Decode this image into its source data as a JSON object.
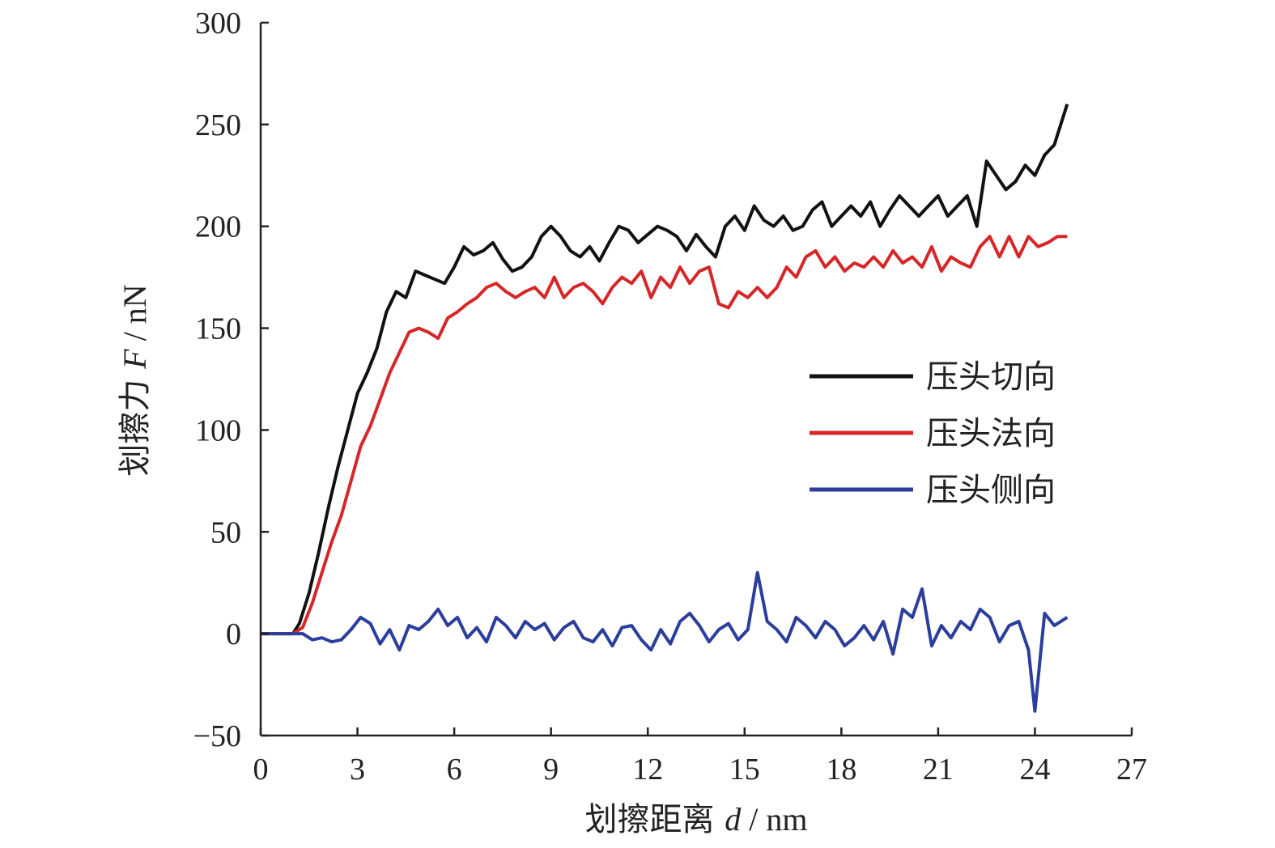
{
  "chart_data": {
    "type": "line",
    "title": "",
    "xlabel": {
      "prefix": "划擦距离 ",
      "var": "d",
      "suffix": " / nm"
    },
    "ylabel": {
      "prefix": "划擦力 ",
      "var": "F",
      "suffix": " / nN"
    },
    "xlim": [
      0,
      27
    ],
    "ylim": [
      -50,
      300
    ],
    "xticks": [
      0,
      3,
      6,
      9,
      12,
      15,
      18,
      21,
      24,
      27
    ],
    "yticks": [
      -50,
      0,
      50,
      100,
      150,
      200,
      250,
      300
    ],
    "grid": false,
    "legend_position": "right-middle",
    "series": [
      {
        "name": "压头切向",
        "color": "#111111",
        "points": [
          [
            0,
            0
          ],
          [
            0.5,
            0
          ],
          [
            1.0,
            0
          ],
          [
            1.2,
            5
          ],
          [
            1.5,
            20
          ],
          [
            1.8,
            40
          ],
          [
            2.1,
            62
          ],
          [
            2.4,
            82
          ],
          [
            2.7,
            100
          ],
          [
            3.0,
            118
          ],
          [
            3.3,
            128
          ],
          [
            3.6,
            140
          ],
          [
            3.9,
            158
          ],
          [
            4.2,
            168
          ],
          [
            4.5,
            165
          ],
          [
            4.8,
            178
          ],
          [
            5.1,
            176
          ],
          [
            5.4,
            174
          ],
          [
            5.7,
            172
          ],
          [
            6.0,
            180
          ],
          [
            6.3,
            190
          ],
          [
            6.6,
            186
          ],
          [
            6.9,
            188
          ],
          [
            7.2,
            192
          ],
          [
            7.5,
            184
          ],
          [
            7.8,
            178
          ],
          [
            8.1,
            180
          ],
          [
            8.4,
            185
          ],
          [
            8.7,
            195
          ],
          [
            9.0,
            200
          ],
          [
            9.3,
            195
          ],
          [
            9.6,
            188
          ],
          [
            9.9,
            185
          ],
          [
            10.2,
            190
          ],
          [
            10.5,
            183
          ],
          [
            10.8,
            192
          ],
          [
            11.1,
            200
          ],
          [
            11.4,
            198
          ],
          [
            11.7,
            192
          ],
          [
            12.0,
            196
          ],
          [
            12.3,
            200
          ],
          [
            12.6,
            198
          ],
          [
            12.9,
            195
          ],
          [
            13.2,
            188
          ],
          [
            13.5,
            196
          ],
          [
            13.8,
            190
          ],
          [
            14.1,
            185
          ],
          [
            14.4,
            200
          ],
          [
            14.7,
            205
          ],
          [
            15.0,
            198
          ],
          [
            15.3,
            210
          ],
          [
            15.6,
            203
          ],
          [
            15.9,
            200
          ],
          [
            16.2,
            205
          ],
          [
            16.5,
            198
          ],
          [
            16.8,
            200
          ],
          [
            17.1,
            208
          ],
          [
            17.4,
            212
          ],
          [
            17.7,
            200
          ],
          [
            18.0,
            205
          ],
          [
            18.3,
            210
          ],
          [
            18.6,
            205
          ],
          [
            18.9,
            212
          ],
          [
            19.2,
            200
          ],
          [
            19.5,
            208
          ],
          [
            19.8,
            215
          ],
          [
            20.1,
            210
          ],
          [
            20.4,
            205
          ],
          [
            20.7,
            210
          ],
          [
            21.0,
            215
          ],
          [
            21.3,
            205
          ],
          [
            21.6,
            210
          ],
          [
            21.9,
            215
          ],
          [
            22.2,
            200
          ],
          [
            22.5,
            232
          ],
          [
            22.8,
            225
          ],
          [
            23.1,
            218
          ],
          [
            23.4,
            222
          ],
          [
            23.7,
            230
          ],
          [
            24.0,
            225
          ],
          [
            24.3,
            235
          ],
          [
            24.6,
            240
          ],
          [
            25.0,
            260
          ]
        ]
      },
      {
        "name": "压头法向",
        "color": "#d62728",
        "points": [
          [
            0,
            0
          ],
          [
            0.5,
            0
          ],
          [
            1.0,
            0
          ],
          [
            1.3,
            3
          ],
          [
            1.6,
            15
          ],
          [
            1.9,
            30
          ],
          [
            2.2,
            45
          ],
          [
            2.5,
            58
          ],
          [
            2.8,
            75
          ],
          [
            3.1,
            92
          ],
          [
            3.4,
            102
          ],
          [
            3.7,
            115
          ],
          [
            4.0,
            128
          ],
          [
            4.3,
            138
          ],
          [
            4.6,
            148
          ],
          [
            4.9,
            150
          ],
          [
            5.2,
            148
          ],
          [
            5.5,
            145
          ],
          [
            5.8,
            155
          ],
          [
            6.1,
            158
          ],
          [
            6.4,
            162
          ],
          [
            6.7,
            165
          ],
          [
            7.0,
            170
          ],
          [
            7.3,
            172
          ],
          [
            7.6,
            168
          ],
          [
            7.9,
            165
          ],
          [
            8.2,
            168
          ],
          [
            8.5,
            170
          ],
          [
            8.8,
            165
          ],
          [
            9.1,
            175
          ],
          [
            9.4,
            165
          ],
          [
            9.7,
            170
          ],
          [
            10.0,
            172
          ],
          [
            10.3,
            168
          ],
          [
            10.6,
            162
          ],
          [
            10.9,
            170
          ],
          [
            11.2,
            175
          ],
          [
            11.5,
            172
          ],
          [
            11.8,
            178
          ],
          [
            12.1,
            165
          ],
          [
            12.4,
            175
          ],
          [
            12.7,
            170
          ],
          [
            13.0,
            180
          ],
          [
            13.3,
            172
          ],
          [
            13.6,
            178
          ],
          [
            13.9,
            180
          ],
          [
            14.2,
            162
          ],
          [
            14.5,
            160
          ],
          [
            14.8,
            168
          ],
          [
            15.1,
            165
          ],
          [
            15.4,
            170
          ],
          [
            15.7,
            165
          ],
          [
            16.0,
            170
          ],
          [
            16.3,
            180
          ],
          [
            16.6,
            175
          ],
          [
            16.9,
            185
          ],
          [
            17.2,
            188
          ],
          [
            17.5,
            180
          ],
          [
            17.8,
            185
          ],
          [
            18.1,
            178
          ],
          [
            18.4,
            182
          ],
          [
            18.7,
            180
          ],
          [
            19.0,
            185
          ],
          [
            19.3,
            180
          ],
          [
            19.6,
            188
          ],
          [
            19.9,
            182
          ],
          [
            20.2,
            185
          ],
          [
            20.5,
            180
          ],
          [
            20.8,
            190
          ],
          [
            21.1,
            178
          ],
          [
            21.4,
            185
          ],
          [
            21.7,
            182
          ],
          [
            22.0,
            180
          ],
          [
            22.3,
            190
          ],
          [
            22.6,
            195
          ],
          [
            22.9,
            185
          ],
          [
            23.2,
            195
          ],
          [
            23.5,
            185
          ],
          [
            23.8,
            195
          ],
          [
            24.1,
            190
          ],
          [
            24.4,
            192
          ],
          [
            24.7,
            195
          ],
          [
            25.0,
            195
          ]
        ]
      },
      {
        "name": "压头侧向",
        "color": "#2c3e9c",
        "points": [
          [
            0,
            0
          ],
          [
            0.5,
            0
          ],
          [
            1.0,
            0
          ],
          [
            1.3,
            0
          ],
          [
            1.6,
            -3
          ],
          [
            1.9,
            -2
          ],
          [
            2.2,
            -4
          ],
          [
            2.5,
            -3
          ],
          [
            2.8,
            2
          ],
          [
            3.1,
            8
          ],
          [
            3.4,
            5
          ],
          [
            3.7,
            -5
          ],
          [
            4.0,
            2
          ],
          [
            4.3,
            -8
          ],
          [
            4.6,
            4
          ],
          [
            4.9,
            2
          ],
          [
            5.2,
            6
          ],
          [
            5.5,
            12
          ],
          [
            5.8,
            4
          ],
          [
            6.1,
            8
          ],
          [
            6.4,
            -2
          ],
          [
            6.7,
            3
          ],
          [
            7.0,
            -4
          ],
          [
            7.3,
            8
          ],
          [
            7.6,
            4
          ],
          [
            7.9,
            -2
          ],
          [
            8.2,
            6
          ],
          [
            8.5,
            2
          ],
          [
            8.8,
            5
          ],
          [
            9.1,
            -3
          ],
          [
            9.4,
            3
          ],
          [
            9.7,
            6
          ],
          [
            10.0,
            -2
          ],
          [
            10.3,
            -4
          ],
          [
            10.6,
            2
          ],
          [
            10.9,
            -6
          ],
          [
            11.2,
            3
          ],
          [
            11.5,
            4
          ],
          [
            11.8,
            -3
          ],
          [
            12.1,
            -8
          ],
          [
            12.4,
            2
          ],
          [
            12.7,
            -5
          ],
          [
            13.0,
            6
          ],
          [
            13.3,
            10
          ],
          [
            13.6,
            4
          ],
          [
            13.9,
            -4
          ],
          [
            14.2,
            2
          ],
          [
            14.5,
            5
          ],
          [
            14.8,
            -3
          ],
          [
            15.1,
            2
          ],
          [
            15.4,
            30
          ],
          [
            15.7,
            6
          ],
          [
            16.0,
            2
          ],
          [
            16.3,
            -4
          ],
          [
            16.6,
            8
          ],
          [
            16.9,
            4
          ],
          [
            17.2,
            -2
          ],
          [
            17.5,
            6
          ],
          [
            17.8,
            2
          ],
          [
            18.1,
            -6
          ],
          [
            18.4,
            -2
          ],
          [
            18.7,
            4
          ],
          [
            19.0,
            -3
          ],
          [
            19.3,
            6
          ],
          [
            19.6,
            -10
          ],
          [
            19.9,
            12
          ],
          [
            20.2,
            8
          ],
          [
            20.5,
            22
          ],
          [
            20.8,
            -6
          ],
          [
            21.1,
            4
          ],
          [
            21.4,
            -2
          ],
          [
            21.7,
            6
          ],
          [
            22.0,
            2
          ],
          [
            22.3,
            12
          ],
          [
            22.6,
            8
          ],
          [
            22.9,
            -4
          ],
          [
            23.2,
            4
          ],
          [
            23.5,
            6
          ],
          [
            23.8,
            -8
          ],
          [
            24.0,
            -38
          ],
          [
            24.3,
            10
          ],
          [
            24.6,
            4
          ],
          [
            25.0,
            8
          ]
        ]
      }
    ]
  }
}
